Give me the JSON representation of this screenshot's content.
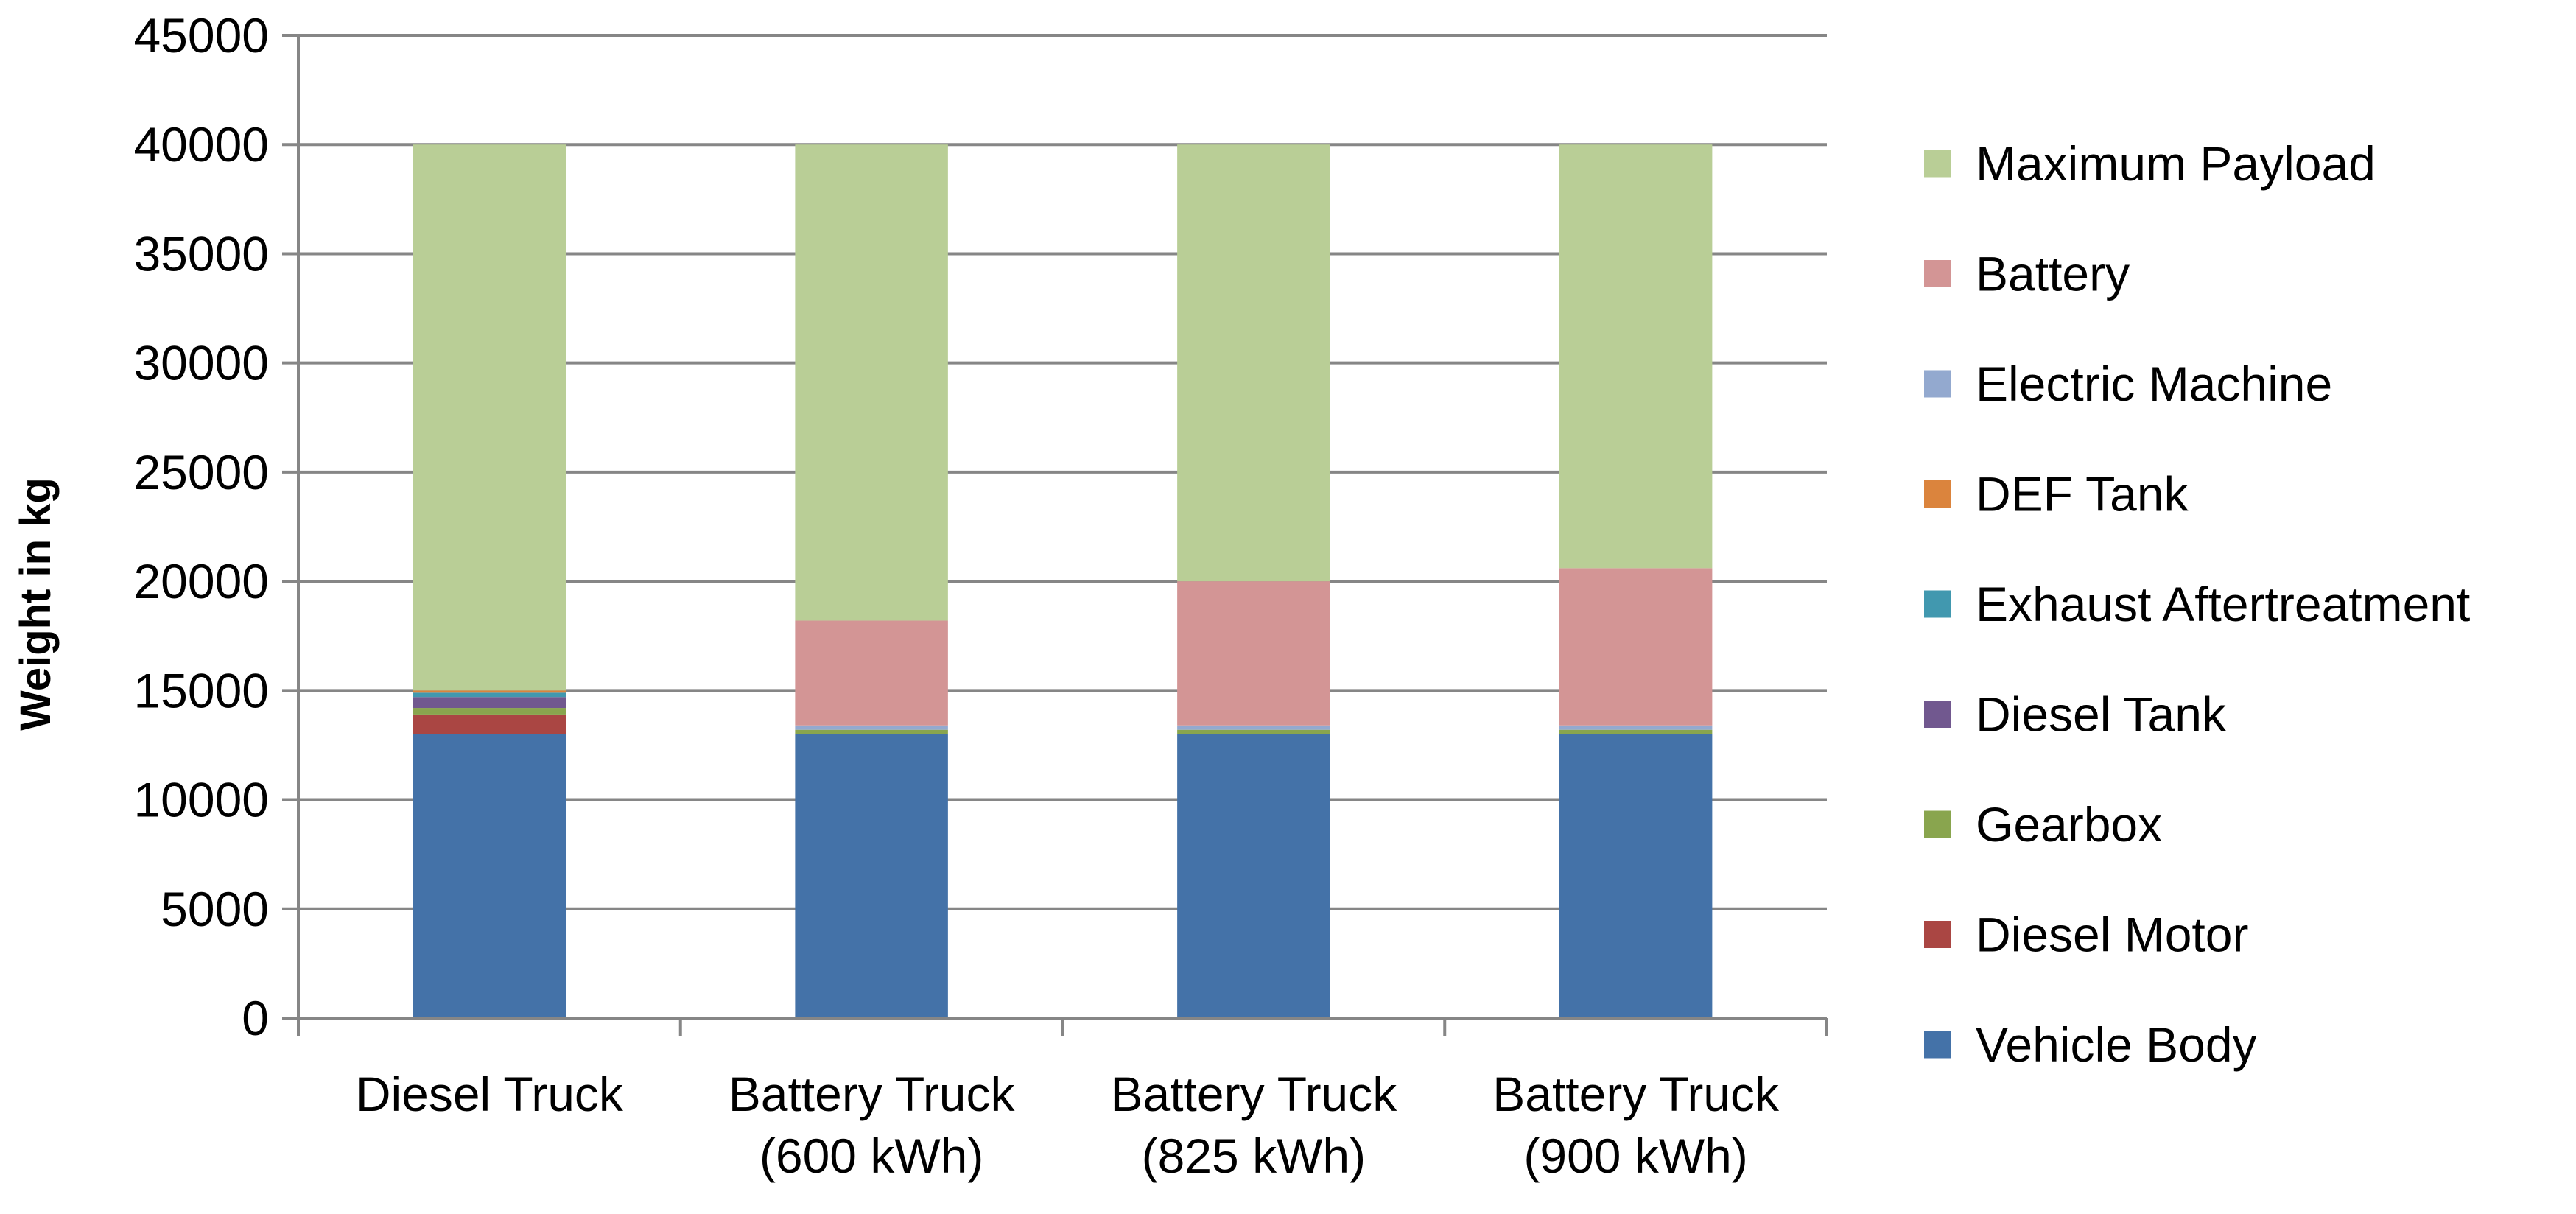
{
  "chart_data": {
    "type": "bar",
    "stacked": true,
    "title": "",
    "xlabel": "",
    "ylabel": "Weight in kg",
    "ylim": [
      0,
      45000
    ],
    "yticks": [
      0,
      5000,
      10000,
      15000,
      20000,
      25000,
      30000,
      35000,
      40000,
      45000
    ],
    "grid": true,
    "legend_position": "right",
    "categories": [
      [
        "Diesel Truck"
      ],
      [
        "Battery Truck",
        "(600 kWh)"
      ],
      [
        "Battery Truck",
        "(825 kWh)"
      ],
      [
        "Battery Truck",
        "(900 kWh)"
      ]
    ],
    "series": [
      {
        "name": "Vehicle Body",
        "color": "#4472A8",
        "values": [
          13000,
          13000,
          13000,
          13000
        ]
      },
      {
        "name": "Diesel Motor",
        "color": "#AA4643",
        "values": [
          900,
          0,
          0,
          0
        ]
      },
      {
        "name": "Gearbox",
        "color": "#89A54E",
        "values": [
          300,
          200,
          200,
          200
        ]
      },
      {
        "name": "Diesel Tank",
        "color": "#71588F",
        "values": [
          500,
          0,
          0,
          0
        ]
      },
      {
        "name": "Exhaust Aftertreatment",
        "color": "#4198AF",
        "values": [
          200,
          0,
          0,
          0
        ]
      },
      {
        "name": "DEF Tank",
        "color": "#DB843D",
        "values": [
          100,
          0,
          0,
          0
        ]
      },
      {
        "name": "Electric Machine",
        "color": "#93A9CF",
        "values": [
          0,
          200,
          200,
          200
        ]
      },
      {
        "name": "Battery",
        "color": "#D39595",
        "values": [
          0,
          4800,
          6600,
          7200
        ]
      },
      {
        "name": "Maximum Payload",
        "color": "#B9CE96",
        "values": [
          25000,
          21800,
          20000,
          19400
        ]
      }
    ]
  }
}
